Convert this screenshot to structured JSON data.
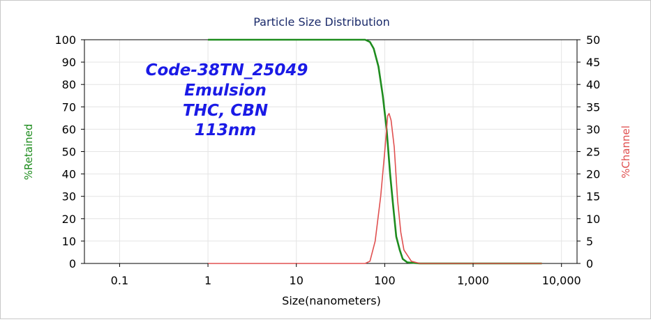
{
  "chart_data": {
    "type": "line",
    "title": "Particle Size Distribution",
    "xlabel": "Size(nanometers)",
    "ylabel_left": "%Retained",
    "ylabel_right": "%Channel",
    "x_scale": "log",
    "xlim": [
      0.04,
      15000
    ],
    "ylim_left": [
      0,
      100
    ],
    "ylim_right": [
      0,
      50
    ],
    "x_ticks": [
      {
        "value": 0.1,
        "label": "0.1"
      },
      {
        "value": 1,
        "label": "1"
      },
      {
        "value": 10,
        "label": "10"
      },
      {
        "value": 100,
        "label": "100"
      },
      {
        "value": 1000,
        "label": "1,000"
      },
      {
        "value": 10000,
        "label": "10,000"
      }
    ],
    "y_ticks_left": [
      "0",
      "10",
      "20",
      "30",
      "40",
      "50",
      "60",
      "70",
      "80",
      "90",
      "100"
    ],
    "y_ticks_right": [
      "0",
      "5",
      "10",
      "15",
      "20",
      "25",
      "30",
      "35",
      "40",
      "45",
      "50"
    ],
    "grid": true,
    "series": [
      {
        "name": "%Retained",
        "axis": "left",
        "color": "#1e8c1e",
        "points": [
          [
            1,
            100
          ],
          [
            60,
            100
          ],
          [
            68,
            99
          ],
          [
            75,
            96
          ],
          [
            85,
            88
          ],
          [
            95,
            75
          ],
          [
            105,
            60
          ],
          [
            115,
            40
          ],
          [
            125,
            25
          ],
          [
            135,
            12
          ],
          [
            148,
            6
          ],
          [
            160,
            2
          ],
          [
            180,
            0.5
          ],
          [
            250,
            0
          ],
          [
            6000,
            0
          ]
        ]
      },
      {
        "name": "%Channel",
        "axis": "right",
        "color": "#e05050",
        "points": [
          [
            1,
            0
          ],
          [
            60,
            0
          ],
          [
            68,
            0.5
          ],
          [
            78,
            5
          ],
          [
            90,
            15
          ],
          [
            100,
            25
          ],
          [
            108,
            33
          ],
          [
            112,
            33.5
          ],
          [
            118,
            32
          ],
          [
            128,
            26
          ],
          [
            140,
            14
          ],
          [
            152,
            7
          ],
          [
            165,
            3
          ],
          [
            200,
            0.5
          ],
          [
            250,
            0
          ],
          [
            6000,
            0
          ]
        ]
      }
    ],
    "annotations": [
      "Code-38TN_25049",
      "Emulsion",
      "THC, CBN",
      "113nm"
    ]
  }
}
